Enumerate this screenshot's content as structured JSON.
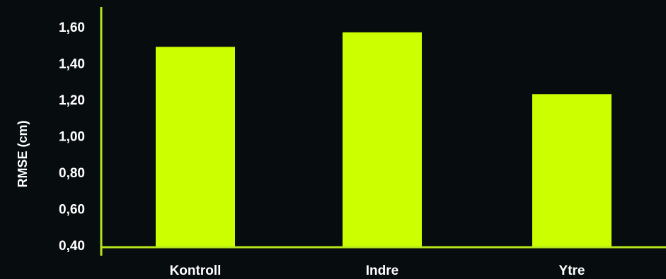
{
  "chart_data": {
    "type": "bar",
    "categories": [
      "Kontroll",
      "Indre",
      "Ytre"
    ],
    "values": [
      1.49,
      1.57,
      1.23
    ],
    "ylabel": "RMSE (cm)",
    "ylim": [
      0.4,
      1.7
    ],
    "yticks": [
      {
        "value": 0.4,
        "label": "0,40"
      },
      {
        "value": 0.6,
        "label": "0,60"
      },
      {
        "value": 0.8,
        "label": "0,80"
      },
      {
        "value": 1.0,
        "label": "1,00"
      },
      {
        "value": 1.2,
        "label": "1,20"
      },
      {
        "value": 1.4,
        "label": "1,40"
      },
      {
        "value": 1.6,
        "label": "1,60"
      }
    ],
    "grid": false,
    "colors": {
      "bar": "#ccff00",
      "axis": "#b5e61d",
      "text": "#ffffff",
      "background": "#070c0e"
    }
  }
}
